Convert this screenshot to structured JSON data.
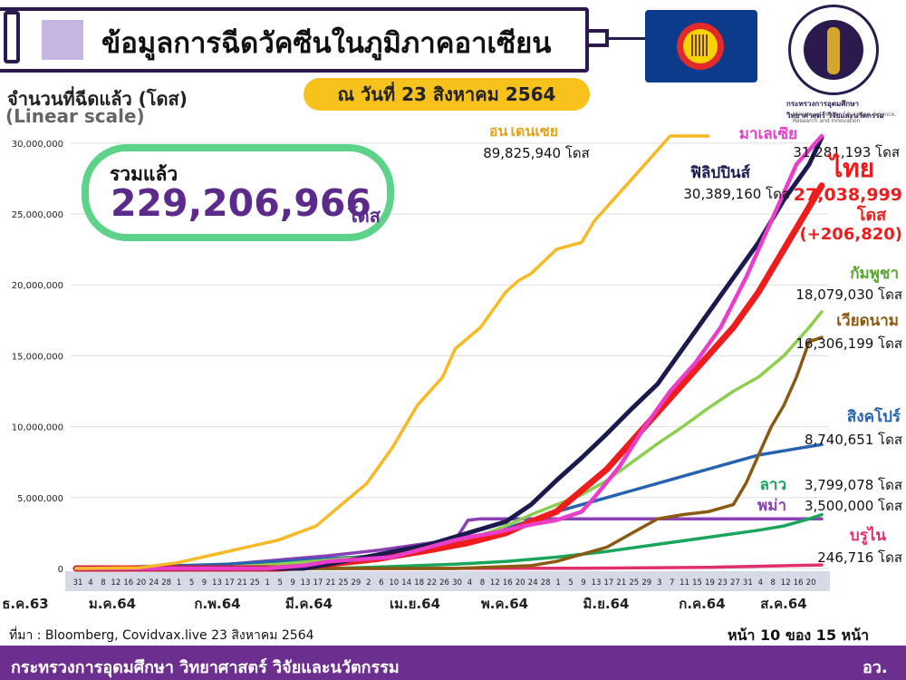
{
  "header": {
    "title": "ข้อมูลการฉีดวัคซีนในภูมิภาคอาเซียน",
    "date": "ณ วันที่ 23 สิงหาคม 2564",
    "ministry_th": "กระทรวงการอุดมศึกษา วิทยาศาสตร์ วิจัยและนวัตกรรม",
    "ministry_en": "Ministry of Higher Education, Science, Research and Innovation"
  },
  "axis_title": "จำนวนที่ฉีดแล้ว (โดส)",
  "axis_scale": "(Linear scale)",
  "total": {
    "label": "รวมแล้ว",
    "value": "229,206,966",
    "unit": "โดส"
  },
  "chart_data": {
    "type": "line",
    "ylim": [
      0,
      30500000
    ],
    "yticks": [
      "0",
      "5,000,000",
      "10,000,000",
      "15,000,000",
      "20,000,000",
      "25,000,000",
      "30,000,000"
    ],
    "x_days": [
      "31",
      "4",
      "8",
      "12",
      "16",
      "20",
      "24",
      "28",
      "1",
      "5",
      "9",
      "13",
      "17",
      "21",
      "25",
      "1",
      "5",
      "9",
      "13",
      "17",
      "21",
      "25",
      "29",
      "2",
      "6",
      "10",
      "14",
      "18",
      "22",
      "26",
      "30",
      "4",
      "8",
      "12",
      "16",
      "20",
      "24",
      "28",
      "1",
      "5",
      "9",
      "13",
      "17",
      "21",
      "25",
      "29",
      "3",
      "7",
      "11",
      "15",
      "19",
      "23",
      "27",
      "31",
      "4",
      "8",
      "12",
      "16",
      "20"
    ],
    "x_months": [
      "ธ.ค.63",
      "ม.ค.64",
      "ก.พ.64",
      "มี.ค.64",
      "เม.ย.64",
      "พ.ค.64",
      "มิ.ย.64",
      "ก.ค.64",
      "ส.ค.64"
    ],
    "series": [
      {
        "name": "อินโดนีเซีย",
        "color": "#f7b924",
        "label_value": "89,825,940 โดส",
        "x": [
          0,
          5,
          8,
          10,
          13,
          16,
          19,
          21,
          23,
          25,
          27,
          29,
          30,
          32,
          34,
          35,
          36,
          38,
          40,
          41,
          43,
          45,
          47,
          48,
          50
        ],
        "y": [
          0,
          50000,
          400000,
          800000,
          1400000,
          2000000,
          3000000,
          4500000,
          6000000,
          8500000,
          11500000,
          13500000,
          15500000,
          17000000,
          19500000,
          20300000,
          20800000,
          22500000,
          23000000,
          24500000,
          26500000,
          28500000,
          30500000,
          31500000,
          32000000
        ]
      },
      {
        "name": "มาเลเซีย",
        "color": "#e83ec9",
        "label_value": "31,281,193 โดส",
        "x": [
          0,
          15,
          18,
          20,
          25,
          30,
          31,
          33,
          36,
          38,
          40,
          41,
          43,
          45,
          47,
          49,
          51,
          53,
          55,
          57,
          59
        ],
        "y": [
          0,
          0,
          200000,
          500000,
          800000,
          2000000,
          2200000,
          2500000,
          3100000,
          3400000,
          4000000,
          5000000,
          7200000,
          10000000,
          12500000,
          14500000,
          17000000,
          20500000,
          24500000,
          28500000,
          31300000
        ]
      },
      {
        "name": "ฟิลิปปินส์",
        "color": "#1b1a4f",
        "label_value": "30,389,160 โดส",
        "x": [
          0,
          18,
          20,
          24,
          28,
          31,
          34,
          36,
          38,
          40,
          42,
          44,
          46,
          48,
          50,
          52,
          54,
          56,
          58,
          59
        ],
        "y": [
          0,
          0,
          300000,
          1000000,
          1700000,
          2500000,
          3300000,
          4500000,
          6200000,
          7800000,
          9500000,
          11300000,
          13000000,
          15500000,
          18000000,
          20500000,
          23000000,
          26000000,
          28500000,
          30400000
        ]
      },
      {
        "name": "ไทย",
        "color": "#ee1c1c",
        "label_value": "27,038,999",
        "x": [
          0,
          16,
          18,
          20,
          24,
          28,
          31,
          34,
          36,
          38,
          40,
          42,
          44,
          46,
          48,
          50,
          52,
          54,
          56,
          58,
          59
        ],
        "y": [
          0,
          0,
          100000,
          300000,
          700000,
          1300000,
          1800000,
          2500000,
          3300000,
          4000000,
          5500000,
          7000000,
          9000000,
          11000000,
          13000000,
          15000000,
          17000000,
          19500000,
          22500000,
          25500000,
          27000000
        ]
      },
      {
        "name": "กัมพูชา",
        "color": "#8ccf4f",
        "label_value": "18,079,030 โดส",
        "x": [
          0,
          8,
          12,
          16,
          20,
          24,
          28,
          31,
          34,
          36,
          38,
          40,
          42,
          44,
          46,
          48,
          50,
          52,
          54,
          56,
          58,
          59
        ],
        "y": [
          0,
          0,
          100000,
          300000,
          600000,
          900000,
          1200000,
          2000000,
          3000000,
          3800000,
          4500000,
          5200000,
          6200000,
          7500000,
          8800000,
          10000000,
          11300000,
          12500000,
          13500000,
          15000000,
          17000000,
          18100000
        ]
      },
      {
        "name": "เวียดนาม",
        "color": "#8b5a12",
        "label_value": "16,306,199 โดส",
        "x": [
          0,
          20,
          30,
          36,
          38,
          40,
          42,
          44,
          46,
          48,
          50,
          52,
          53,
          54,
          55,
          56,
          57,
          58,
          59
        ],
        "y": [
          0,
          0,
          0,
          200000,
          500000,
          1000000,
          1500000,
          2500000,
          3500000,
          3800000,
          4000000,
          4500000,
          6000000,
          8000000,
          10000000,
          11500000,
          13500000,
          16000000,
          16300000
        ]
      },
      {
        "name": "สิงคโปร์",
        "color": "#2563b0",
        "label_value": "8,740,651 โดส",
        "x": [
          0,
          8,
          12,
          16,
          20,
          24,
          28,
          31,
          34,
          36,
          38,
          40,
          42,
          44,
          46,
          48,
          50,
          52,
          54,
          56,
          58,
          59
        ],
        "y": [
          0,
          200000,
          300000,
          500000,
          700000,
          900000,
          1300000,
          2000000,
          2800000,
          3400000,
          4000000,
          4500000,
          5000000,
          5500000,
          6000000,
          6500000,
          7000000,
          7500000,
          8000000,
          8300000,
          8600000,
          8740000
        ]
      },
      {
        "name": "ลาว",
        "color": "#1aa55c",
        "label_value": "3,799,078 โดส",
        "x": [
          0,
          20,
          24,
          30,
          34,
          38,
          42,
          46,
          50,
          54,
          56,
          58,
          59
        ],
        "y": [
          0,
          0,
          100000,
          300000,
          500000,
          800000,
          1200000,
          1700000,
          2200000,
          2700000,
          3000000,
          3500000,
          3800000
        ]
      },
      {
        "name": "พม่า",
        "color": "#8b3fb5",
        "label_value": "3,500,000 โดส",
        "x": [
          0,
          5,
          8,
          12,
          16,
          20,
          24,
          28,
          30,
          31,
          32,
          59
        ],
        "y": [
          0,
          0,
          100000,
          300000,
          600000,
          900000,
          1300000,
          1800000,
          2000000,
          3400000,
          3500000,
          3500000
        ]
      },
      {
        "name": "บรูไน",
        "color": "#e0306b",
        "label_value": "246,716 โดส",
        "x": [
          0,
          20,
          40,
          50,
          55,
          59
        ],
        "y": [
          0,
          0,
          20000,
          80000,
          180000,
          246716
        ]
      }
    ]
  },
  "thai_extra": {
    "unit": "โดส",
    "delta": "(+206,820)"
  },
  "footer": {
    "source": "ที่มา : Bloomberg, Covidvax.live 23 สิงหาคม 2564",
    "page": "หน้า 10 ของ 15 หน้า",
    "org": "กระทรวงการอุดมศึกษา วิทยาศาสตร์ วิจัยและนวัตกรรม",
    "abbr": "อว."
  }
}
